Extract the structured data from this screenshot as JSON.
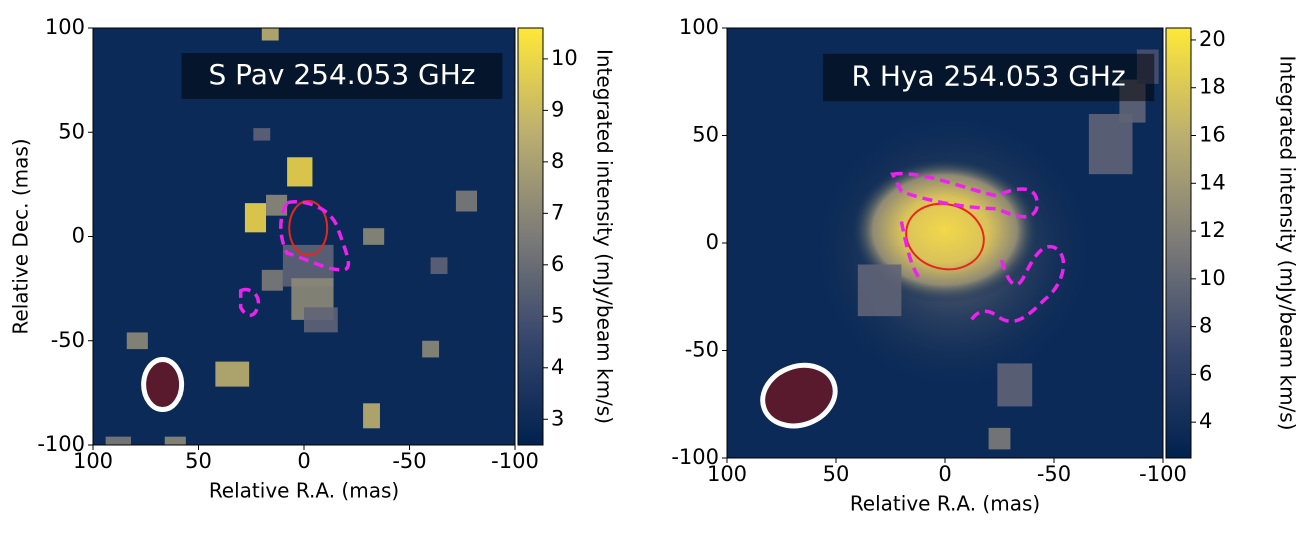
{
  "chart_data": [
    {
      "type": "image",
      "title": "S Pav 254.053 GHz",
      "x_label": "Relative R.A. (mas)",
      "y_label": "Relative Dec. (mas)",
      "xlim": [
        100,
        -100
      ],
      "xticks": [
        100,
        50,
        0,
        -50,
        -100
      ],
      "ylim": [
        -100,
        100
      ],
      "yticks": [
        -100,
        -50,
        0,
        50,
        100
      ],
      "colorbar": {
        "label": "Integrated intensity (mJy/beam km/s)",
        "lim": [
          2.5,
          10.6
        ],
        "ticks": [
          3,
          4,
          5,
          6,
          7,
          8,
          9,
          10
        ]
      }
    },
    {
      "type": "image",
      "title": "R Hya 254.053 GHz",
      "x_label": "Relative R.A. (mas)",
      "xlim": [
        100,
        -100
      ],
      "xticks": [
        100,
        50,
        0,
        -50,
        -100
      ],
      "ylim": [
        -100,
        100
      ],
      "yticks": [
        -100,
        -50,
        0,
        50,
        100
      ],
      "colorbar": {
        "label": "Integrated intensity (mJy/beam km/s)",
        "lim": [
          2.5,
          20.5
        ],
        "ticks": [
          4,
          6,
          8,
          10,
          12,
          14,
          16,
          18,
          20
        ]
      }
    }
  ]
}
